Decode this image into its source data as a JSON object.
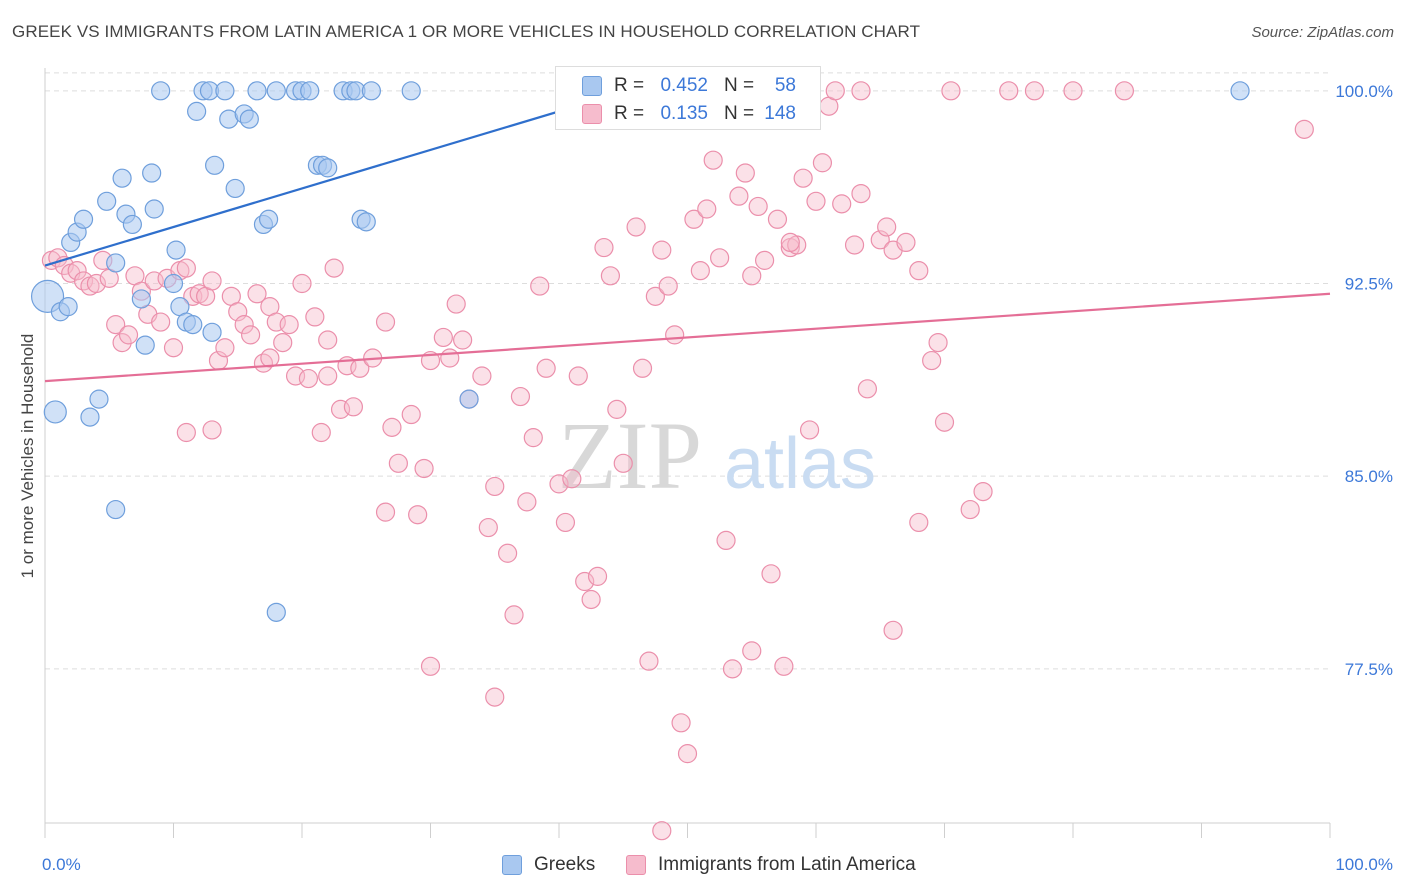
{
  "title": "GREEK VS IMMIGRANTS FROM LATIN AMERICA 1 OR MORE VEHICLES IN HOUSEHOLD CORRELATION CHART",
  "source": "Source: ZipAtlas.com",
  "watermark": {
    "zip": "ZIP",
    "atlas": "atlas"
  },
  "colors": {
    "greeks_fill": "#a9c8f0",
    "greeks_stroke": "#6f9fdc",
    "greeks_line": "#2f6fcc",
    "latam_fill": "#f6bccd",
    "latam_stroke": "#eb8fab",
    "latam_line": "#e46e96",
    "tick_label": "#3c78d8",
    "grid": "#dddddd"
  },
  "stats": {
    "rows": [
      {
        "r_label": "R =",
        "r_value": "0.452",
        "n_label": "N =",
        "n_value": "58"
      },
      {
        "r_label": "R =",
        "r_value": "0.135",
        "n_label": "N =",
        "n_value": "148"
      }
    ]
  },
  "legend": {
    "greeks": "Greeks",
    "latam": "Immigrants from Latin America"
  },
  "chart_data": {
    "type": "scatter",
    "ylabel": "1 or more Vehicles in Household",
    "xlim": [
      0,
      100
    ],
    "ylim": [
      71.5,
      101.2
    ],
    "x_tick_labels": [
      "0.0%",
      "100.0%"
    ],
    "y_ticks": [
      77.5,
      85.0,
      92.5,
      100.0
    ],
    "y_tick_labels": [
      "77.5%",
      "85.0%",
      "92.5%",
      "100.0%"
    ],
    "grid": "horizontal dashed",
    "series": [
      {
        "name": "Greeks",
        "trend": [
          [
            0,
            93.2
          ],
          [
            50,
            100.7
          ]
        ],
        "points": [
          [
            0.2,
            92.0
          ],
          [
            0.8,
            87.5
          ],
          [
            1.2,
            91.4
          ],
          [
            1.8,
            91.6
          ],
          [
            2.0,
            94.1
          ],
          [
            2.5,
            94.5
          ],
          [
            3.0,
            95.0
          ],
          [
            3.5,
            87.3
          ],
          [
            4.2,
            88.0
          ],
          [
            4.8,
            95.7
          ],
          [
            5.5,
            93.3
          ],
          [
            6.0,
            96.6
          ],
          [
            6.3,
            95.2
          ],
          [
            6.8,
            94.8
          ],
          [
            7.5,
            91.9
          ],
          [
            7.8,
            90.1
          ],
          [
            8.3,
            96.8
          ],
          [
            8.5,
            95.4
          ],
          [
            9.0,
            100.0
          ],
          [
            10.0,
            92.5
          ],
          [
            10.2,
            93.8
          ],
          [
            10.5,
            91.6
          ],
          [
            11.0,
            91.0
          ],
          [
            11.8,
            99.2
          ],
          [
            12.3,
            100.0
          ],
          [
            12.8,
            100.0
          ],
          [
            13.0,
            90.6
          ],
          [
            13.2,
            97.1
          ],
          [
            14.0,
            100.0
          ],
          [
            14.3,
            98.9
          ],
          [
            14.8,
            96.2
          ],
          [
            15.5,
            99.1
          ],
          [
            15.9,
            98.9
          ],
          [
            16.5,
            100.0
          ],
          [
            17.0,
            94.8
          ],
          [
            17.4,
            95.0
          ],
          [
            18.0,
            100.0
          ],
          [
            19.5,
            100.0
          ],
          [
            20.0,
            100.0
          ],
          [
            20.6,
            100.0
          ],
          [
            21.2,
            97.1
          ],
          [
            21.6,
            97.1
          ],
          [
            22.0,
            97.0
          ],
          [
            23.2,
            100.0
          ],
          [
            23.8,
            100.0
          ],
          [
            24.2,
            100.0
          ],
          [
            24.6,
            95.0
          ],
          [
            25.0,
            94.9
          ],
          [
            25.4,
            100.0
          ],
          [
            28.5,
            100.0
          ],
          [
            33.0,
            88.0
          ],
          [
            41.0,
            100.0
          ],
          [
            53.0,
            100.0
          ],
          [
            93.0,
            100.0
          ],
          [
            55.0,
            100.0
          ],
          [
            5.5,
            83.7
          ],
          [
            18.0,
            79.7
          ],
          [
            11.5,
            90.9
          ]
        ]
      },
      {
        "name": "Immigrants from Latin America",
        "trend": [
          [
            0,
            88.7
          ],
          [
            100,
            92.1
          ]
        ],
        "points": [
          [
            0.5,
            93.4
          ],
          [
            1.0,
            93.5
          ],
          [
            1.5,
            93.2
          ],
          [
            2.0,
            92.9
          ],
          [
            2.5,
            93.0
          ],
          [
            3.0,
            92.6
          ],
          [
            3.5,
            92.4
          ],
          [
            4.0,
            92.5
          ],
          [
            4.5,
            93.4
          ],
          [
            5.0,
            92.7
          ],
          [
            5.5,
            90.9
          ],
          [
            6.0,
            90.2
          ],
          [
            6.5,
            90.5
          ],
          [
            7.0,
            92.8
          ],
          [
            7.5,
            92.2
          ],
          [
            8.0,
            91.3
          ],
          [
            8.5,
            92.6
          ],
          [
            9.0,
            91.0
          ],
          [
            9.5,
            92.7
          ],
          [
            10.0,
            90.0
          ],
          [
            10.5,
            93.0
          ],
          [
            11.0,
            93.1
          ],
          [
            11.5,
            92.0
          ],
          [
            12.0,
            92.1
          ],
          [
            12.5,
            92.0
          ],
          [
            13.0,
            92.6
          ],
          [
            13.5,
            89.5
          ],
          [
            14.0,
            90.0
          ],
          [
            14.5,
            92.0
          ],
          [
            15.0,
            91.4
          ],
          [
            15.5,
            90.9
          ],
          [
            16.0,
            90.5
          ],
          [
            16.5,
            92.1
          ],
          [
            17.0,
            89.4
          ],
          [
            17.5,
            91.6
          ],
          [
            18.0,
            91.0
          ],
          [
            18.5,
            90.2
          ],
          [
            19.0,
            90.9
          ],
          [
            19.5,
            88.9
          ],
          [
            20.0,
            92.5
          ],
          [
            20.5,
            88.8
          ],
          [
            21.0,
            91.2
          ],
          [
            21.5,
            86.7
          ],
          [
            22.0,
            90.3
          ],
          [
            22.5,
            93.1
          ],
          [
            23.0,
            87.6
          ],
          [
            23.5,
            89.3
          ],
          [
            24.0,
            87.7
          ],
          [
            24.5,
            89.2
          ],
          [
            25.5,
            89.6
          ],
          [
            26.5,
            91.0
          ],
          [
            27.0,
            86.9
          ],
          [
            27.5,
            85.5
          ],
          [
            28.5,
            87.4
          ],
          [
            29.0,
            83.5
          ],
          [
            29.5,
            85.3
          ],
          [
            30.0,
            89.5
          ],
          [
            31.0,
            90.4
          ],
          [
            31.5,
            89.6
          ],
          [
            32.0,
            91.7
          ],
          [
            32.5,
            90.3
          ],
          [
            33.0,
            88.0
          ],
          [
            34.0,
            88.9
          ],
          [
            34.5,
            83.0
          ],
          [
            35.0,
            84.6
          ],
          [
            36.0,
            82.0
          ],
          [
            37.0,
            88.1
          ],
          [
            37.5,
            84.0
          ],
          [
            38.0,
            86.5
          ],
          [
            38.5,
            92.4
          ],
          [
            39.0,
            89.2
          ],
          [
            40.0,
            84.7
          ],
          [
            40.5,
            83.2
          ],
          [
            41.0,
            84.9
          ],
          [
            41.5,
            88.9
          ],
          [
            42.0,
            80.9
          ],
          [
            43.0,
            81.1
          ],
          [
            43.5,
            93.9
          ],
          [
            44.0,
            92.8
          ],
          [
            44.5,
            87.6
          ],
          [
            45.0,
            85.5
          ],
          [
            46.0,
            94.7
          ],
          [
            46.5,
            89.2
          ],
          [
            47.0,
            77.8
          ],
          [
            47.5,
            92.0
          ],
          [
            48.0,
            93.8
          ],
          [
            48.5,
            92.4
          ],
          [
            49.0,
            90.5
          ],
          [
            50.0,
            74.2
          ],
          [
            50.5,
            95.0
          ],
          [
            51.0,
            93.0
          ],
          [
            51.5,
            95.4
          ],
          [
            52.0,
            97.3
          ],
          [
            52.5,
            93.5
          ],
          [
            53.0,
            82.5
          ],
          [
            53.5,
            77.5
          ],
          [
            54.0,
            95.9
          ],
          [
            54.5,
            96.8
          ],
          [
            55.0,
            92.8
          ],
          [
            55.5,
            95.5
          ],
          [
            56.0,
            93.4
          ],
          [
            56.5,
            81.2
          ],
          [
            57.0,
            95.0
          ],
          [
            58.0,
            93.9
          ],
          [
            58.5,
            94.0
          ],
          [
            59.0,
            96.6
          ],
          [
            60.0,
            95.7
          ],
          [
            60.5,
            97.2
          ],
          [
            61.0,
            99.4
          ],
          [
            62.0,
            95.6
          ],
          [
            63.0,
            94.0
          ],
          [
            63.5,
            96.0
          ],
          [
            64.0,
            88.4
          ],
          [
            65.0,
            94.2
          ],
          [
            65.5,
            94.7
          ],
          [
            66.0,
            93.8
          ],
          [
            67.0,
            94.1
          ],
          [
            68.0,
            93.0
          ],
          [
            69.0,
            89.5
          ],
          [
            69.5,
            90.2
          ],
          [
            70.0,
            87.1
          ],
          [
            72.0,
            83.7
          ],
          [
            73.0,
            84.4
          ],
          [
            75.0,
            100.0
          ],
          [
            80.0,
            100.0
          ],
          [
            84.0,
            100.0
          ],
          [
            98.0,
            98.5
          ],
          [
            61.5,
            100.0
          ],
          [
            63.5,
            100.0
          ],
          [
            70.5,
            100.0
          ],
          [
            77.0,
            100.0
          ],
          [
            59.5,
            86.8
          ],
          [
            49.5,
            75.4
          ],
          [
            48.0,
            71.2
          ],
          [
            55.0,
            78.2
          ],
          [
            57.5,
            77.6
          ],
          [
            66.0,
            79.0
          ],
          [
            42.5,
            80.2
          ],
          [
            36.5,
            79.6
          ],
          [
            30.0,
            77.6
          ],
          [
            35.0,
            76.4
          ],
          [
            26.5,
            83.6
          ],
          [
            11.0,
            86.7
          ],
          [
            17.5,
            89.6
          ],
          [
            13.0,
            86.8
          ],
          [
            68.0,
            83.2
          ],
          [
            22.0,
            88.9
          ],
          [
            58.0,
            94.1
          ]
        ]
      }
    ]
  }
}
